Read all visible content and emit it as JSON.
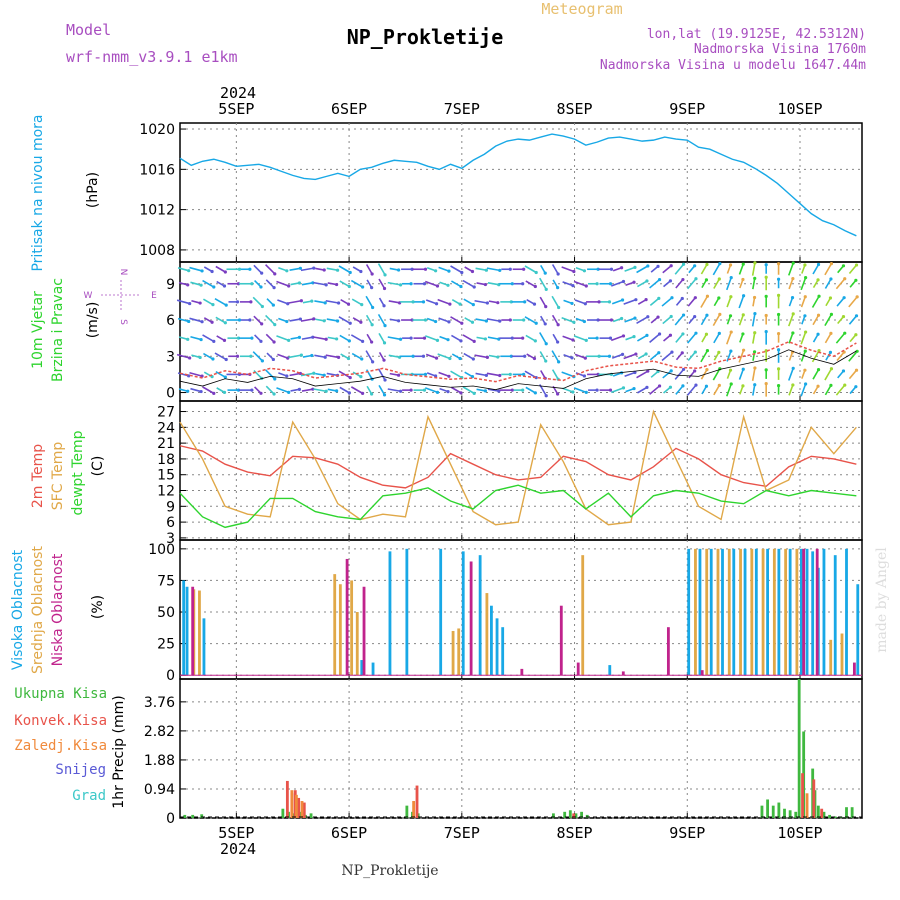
{
  "header": {
    "model_label": "Model",
    "model_name": "wrf-nmm_v3.9.1  e1km",
    "title": "NP_Prokletije",
    "subtitle": "Meteogram",
    "lonlat": "lon,lat (19.9125E, 42.5312N)",
    "elevation": "Nadmorska Visina 1760m",
    "model_elevation": "Nadmorska Visina u modelu 1647.44m",
    "footer_title": "NP_Prokletije",
    "watermark": "made by Angel"
  },
  "time_axis": {
    "year": "2024",
    "day_labels": [
      "5SEP",
      "6SEP",
      "7SEP",
      "8SEP",
      "9SEP",
      "10SEP"
    ],
    "range_days": [
      0,
      6.05
    ]
  },
  "colors": {
    "pressure": "#18a8e6",
    "temp2m": "#e8534a",
    "sfc_temp": "#e0a848",
    "dewpt": "#2ed42e",
    "cloud_high": "#18a8e6",
    "cloud_mid": "#e0a848",
    "cloud_low": "#c0238c",
    "precip_total": "#3fb83f",
    "precip_conv": "#e8534a",
    "precip_strat": "#f08a3c",
    "snow": "#5a5ad6",
    "hail": "#3cc8c8",
    "model_label": "#a84ec0",
    "title_meteogram": "#e8c070"
  },
  "chart_data": [
    {
      "type": "line",
      "panel": "pressure",
      "ylabel_colored": "Pritisak na nivou mora",
      "ylabel": "(hPa)",
      "yticks": [
        1008,
        1012,
        1016,
        1020
      ],
      "ylim": [
        1006.8,
        1020.6
      ],
      "grid": true,
      "series": [
        {
          "color_key": "pressure",
          "x": [
            0,
            0.1,
            0.2,
            0.3,
            0.4,
            0.5,
            0.6,
            0.7,
            0.8,
            0.9,
            1.0,
            1.1,
            1.2,
            1.3,
            1.4,
            1.5,
            1.6,
            1.7,
            1.8,
            1.9,
            2.0,
            2.1,
            2.2,
            2.3,
            2.4,
            2.5,
            2.6,
            2.7,
            2.8,
            2.9,
            3.0,
            3.1,
            3.2,
            3.3,
            3.4,
            3.5,
            3.6,
            3.7,
            3.8,
            3.9,
            4.0,
            4.1,
            4.2,
            4.3,
            4.4,
            4.5,
            4.6,
            4.7,
            4.8,
            4.9,
            5.0,
            5.1,
            5.2,
            5.3,
            5.4,
            5.5,
            5.6,
            5.7,
            5.8,
            5.9,
            6.0
          ],
          "y": [
            1017.1,
            1016.4,
            1016.8,
            1017.0,
            1016.7,
            1016.3,
            1016.4,
            1016.5,
            1016.2,
            1015.8,
            1015.4,
            1015.1,
            1015.0,
            1015.3,
            1015.6,
            1015.3,
            1016.0,
            1016.2,
            1016.6,
            1016.9,
            1016.8,
            1016.7,
            1016.3,
            1016.0,
            1016.5,
            1016.1,
            1016.9,
            1017.5,
            1018.3,
            1018.8,
            1019.0,
            1018.9,
            1019.2,
            1019.5,
            1019.3,
            1019.0,
            1018.4,
            1018.7,
            1019.1,
            1019.2,
            1019.0,
            1018.8,
            1018.9,
            1019.2,
            1019.0,
            1018.9,
            1018.2,
            1018.0,
            1017.5,
            1017.0,
            1016.7,
            1016.1,
            1015.4,
            1014.6,
            1013.6,
            1012.6,
            1011.6,
            1010.9,
            1010.5,
            1009.9,
            1009.4
          ]
        }
      ]
    },
    {
      "type": "line",
      "panel": "wind",
      "ylabel_colored_1": "10m Vjetar",
      "ylabel_colored_2": "Brzina i Pravac",
      "ylabel": "(m/s)",
      "compass": {
        "n": "N",
        "w": "W",
        "e": "E",
        "s": "S"
      },
      "yticks": [
        0,
        3,
        6,
        9
      ],
      "ylim": [
        -0.7,
        10.8
      ],
      "grid": true,
      "series": [
        {
          "name": "speed",
          "x": [
            0,
            0.2,
            0.4,
            0.6,
            0.8,
            1.0,
            1.2,
            1.4,
            1.6,
            1.8,
            2.0,
            2.2,
            2.4,
            2.6,
            2.8,
            3.0,
            3.2,
            3.4,
            3.6,
            3.8,
            4.0,
            4.2,
            4.4,
            4.6,
            4.8,
            5.0,
            5.2,
            5.4,
            5.6,
            5.8,
            6.0
          ],
          "y": [
            1.6,
            1.2,
            1.8,
            1.5,
            2.0,
            1.8,
            1.2,
            1.4,
            1.6,
            2.0,
            1.5,
            1.3,
            1.1,
            1.2,
            0.9,
            1.4,
            1.2,
            1.0,
            1.8,
            2.2,
            2.4,
            2.6,
            2.1,
            2.0,
            2.6,
            3.0,
            3.4,
            4.2,
            3.5,
            3.0,
            4.1
          ]
        }
      ],
      "arrows": {
        "spacing_days": 0.11,
        "direction_from_deg": [
          285,
          300,
          270,
          315,
          290,
          260,
          280,
          300,
          330,
          280,
          270,
          290,
          300,
          280,
          270,
          300,
          330,
          290,
          270,
          250,
          240,
          230,
          220,
          210,
          200,
          190,
          180,
          200,
          210,
          220,
          230
        ]
      }
    },
    {
      "type": "line",
      "panel": "temperature",
      "ylabel_colored_1": "2m Temp",
      "ylabel_colored_2": "SFC Temp",
      "ylabel_colored_3": "dewpt Temp",
      "ylabel": "(C)",
      "yticks": [
        3,
        6,
        9,
        12,
        15,
        18,
        21,
        24,
        27
      ],
      "ylim": [
        2.6,
        29
      ],
      "grid": true,
      "series": [
        {
          "color_key": "temp2m",
          "x": [
            0,
            0.2,
            0.4,
            0.6,
            0.8,
            1.0,
            1.2,
            1.4,
            1.6,
            1.8,
            2.0,
            2.2,
            2.4,
            2.6,
            2.8,
            3.0,
            3.2,
            3.4,
            3.6,
            3.8,
            4.0,
            4.2,
            4.4,
            4.6,
            4.8,
            5.0,
            5.2,
            5.4,
            5.6,
            5.8,
            6.0
          ],
          "y": [
            20.5,
            19.5,
            17.0,
            15.5,
            14.8,
            18.5,
            18.2,
            17.0,
            14.5,
            13.0,
            12.5,
            14.5,
            19.0,
            17.0,
            15.0,
            14.0,
            14.5,
            18.5,
            17.5,
            15.0,
            14.0,
            16.5,
            20.0,
            18.0,
            15.0,
            13.5,
            12.8,
            16.5,
            18.5,
            18.0,
            17.0
          ]
        },
        {
          "color_key": "sfc_temp",
          "x": [
            0,
            0.2,
            0.4,
            0.6,
            0.8,
            1.0,
            1.2,
            1.4,
            1.6,
            1.8,
            2.0,
            2.2,
            2.4,
            2.6,
            2.8,
            3.0,
            3.2,
            3.4,
            3.6,
            3.8,
            4.0,
            4.2,
            4.4,
            4.6,
            4.8,
            5.0,
            5.2,
            5.4,
            5.6,
            5.8,
            6.0
          ],
          "y": [
            25.0,
            18.0,
            9.0,
            7.5,
            7.0,
            25.0,
            18.0,
            9.5,
            6.5,
            7.5,
            7.0,
            26.0,
            17.0,
            8.0,
            5.5,
            6.0,
            24.5,
            17.5,
            8.5,
            5.5,
            6.0,
            27.0,
            18.0,
            9.0,
            6.5,
            26.0,
            12.0,
            14.0,
            24.0,
            19.0,
            24.0
          ]
        },
        {
          "color_key": "dewpt",
          "x": [
            0,
            0.2,
            0.4,
            0.6,
            0.8,
            1.0,
            1.2,
            1.4,
            1.6,
            1.8,
            2.0,
            2.2,
            2.4,
            2.6,
            2.8,
            3.0,
            3.2,
            3.4,
            3.6,
            3.8,
            4.0,
            4.2,
            4.4,
            4.6,
            4.8,
            5.0,
            5.2,
            5.4,
            5.6,
            5.8,
            6.0
          ],
          "y": [
            11.5,
            7.0,
            5.0,
            6.0,
            10.5,
            10.5,
            8.0,
            7.0,
            6.5,
            11.0,
            11.5,
            12.5,
            10.0,
            8.5,
            12.0,
            13.0,
            11.5,
            12.0,
            8.5,
            11.5,
            7.0,
            11.0,
            12.0,
            11.5,
            10.0,
            9.5,
            12.0,
            11.0,
            12.0,
            11.5,
            11.0
          ]
        }
      ]
    },
    {
      "type": "bar",
      "panel": "cloud",
      "ylabel_colored_1": "Visoka Oblacnost",
      "ylabel_colored_2": "Srednja Oblacnost",
      "ylabel_colored_3": "Niska Oblacnost",
      "ylabel": "(%)",
      "yticks": [
        0,
        25,
        50,
        75,
        100
      ],
      "ylim": [
        -3,
        107
      ],
      "grid": true,
      "bar_width_days": 0.025,
      "series": [
        {
          "color_key": "cloud_high",
          "x": [
            0.02,
            0.05,
            0.2,
            1.6,
            1.7,
            1.85,
            2.0,
            2.3,
            2.5,
            2.65,
            2.75,
            2.8,
            2.85,
            3.8,
            4.5,
            4.6,
            4.7,
            4.8,
            4.9,
            5.0,
            5.1,
            5.2,
            5.3,
            5.4,
            5.5,
            5.55,
            5.6,
            5.65,
            5.7,
            5.8,
            5.9,
            6.0
          ],
          "values": [
            75,
            70,
            45,
            12,
            10,
            98,
            100,
            100,
            98,
            95,
            55,
            45,
            38,
            8,
            100,
            100,
            100,
            100,
            100,
            100,
            100,
            100,
            100,
            100,
            100,
            100,
            98,
            85,
            100,
            95,
            100,
            72
          ]
        },
        {
          "color_key": "cloud_mid",
          "x": [
            0.1,
            0.15,
            1.35,
            1.4,
            1.5,
            1.55,
            2.4,
            2.45,
            2.7,
            3.55,
            4.55,
            4.65,
            4.75,
            4.85,
            4.95,
            5.05,
            5.15,
            5.25,
            5.35,
            5.45,
            5.75,
            5.85
          ],
          "values": [
            68,
            67,
            80,
            72,
            75,
            50,
            35,
            37,
            65,
            95,
            100,
            100,
            100,
            100,
            100,
            100,
            100,
            100,
            100,
            100,
            28,
            33
          ]
        },
        {
          "color_key": "cloud_low",
          "x": [
            0.08,
            1.45,
            1.6,
            2.55,
            3.0,
            3.35,
            3.5,
            3.9,
            4.3,
            4.6,
            5.5,
            5.62,
            5.95
          ],
          "values": [
            70,
            92,
            70,
            90,
            5,
            55,
            10,
            3,
            38,
            4,
            100,
            100,
            10
          ]
        }
      ]
    },
    {
      "type": "bar",
      "panel": "precip",
      "legend": [
        "Ukupna Kisa",
        "Konvek.Kisa",
        "Zaledj.Kisa",
        "Snijeg",
        "Grad"
      ],
      "ylabel": "1hr Precip (mm)",
      "yticks": [
        0,
        0.94,
        1.88,
        2.82,
        3.76
      ],
      "ylim": [
        0,
        4.5
      ],
      "grid": true,
      "bar_width_days": 0.025,
      "series": [
        {
          "color_key": "precip_total",
          "x": [
            0.03,
            0.1,
            0.18,
            0.9,
            0.95,
            1.0,
            1.05,
            1.1,
            1.15,
            2.0,
            2.05,
            2.1,
            3.3,
            3.4,
            3.45,
            3.5,
            3.55,
            3.6,
            5.15,
            5.2,
            5.25,
            5.3,
            5.35,
            5.4,
            5.45,
            5.48,
            5.52,
            5.6,
            5.62,
            5.65,
            5.7,
            5.75,
            5.8,
            5.85,
            5.9,
            5.95
          ],
          "values": [
            0.1,
            0.1,
            0.12,
            0.3,
            0.2,
            0.15,
            0.2,
            0.1,
            0.15,
            0.4,
            0.2,
            0.15,
            0.15,
            0.2,
            0.25,
            0.15,
            0.2,
            0.1,
            0.4,
            0.6,
            0.4,
            0.5,
            0.3,
            0.25,
            0.2,
            4.5,
            2.8,
            1.6,
            0.9,
            0.4,
            0.2,
            0.1,
            0.05,
            0.05,
            0.35,
            0.35
          ]
        },
        {
          "color_key": "precip_conv",
          "x": [
            0.93,
            0.97,
            1.0,
            1.03,
            1.08,
            2.08,
            3.47,
            5.5,
            5.6,
            5.67
          ],
          "values": [
            1.2,
            0.8,
            0.9,
            0.65,
            0.5,
            1.05,
            0.15,
            1.45,
            1.25,
            0.3
          ]
        },
        {
          "color_key": "precip_strat",
          "x": [
            0.96,
            1.0,
            1.05,
            2.04,
            5.53
          ],
          "values": [
            0.9,
            0.75,
            0.55,
            0.55,
            0.8
          ]
        }
      ]
    }
  ]
}
